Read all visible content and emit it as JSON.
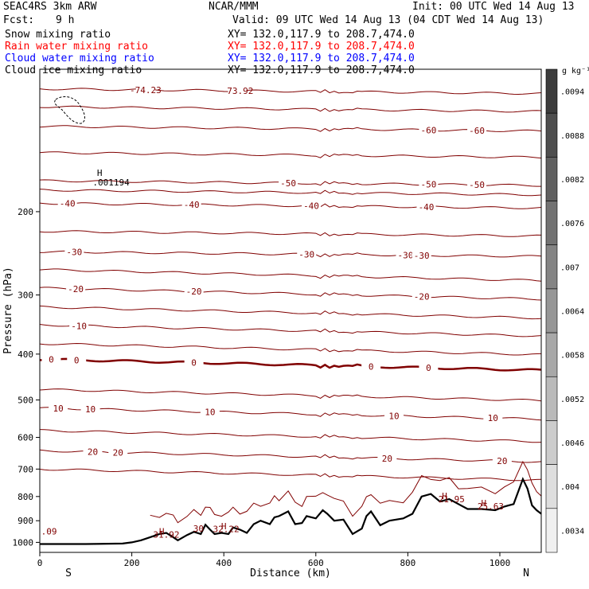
{
  "header": {
    "model": "SEAC4RS   3km ARW",
    "org": "NCAR/MMM",
    "init": "Init: 00 UTC Wed 14 Aug 13",
    "fcst_label": "Fcst:",
    "fcst_value": "9 h",
    "valid": "Valid: 09 UTC Wed 14 Aug 13 (04 CDT Wed 14 Aug 13)"
  },
  "fields": [
    {
      "name": "Snow mixing ratio",
      "xy": "XY= 132.0,117.9 to 208.7,474.0",
      "color": "#000000"
    },
    {
      "name": "Rain water mixing ratio",
      "xy": "XY= 132.0,117.9 to 208.7,474.0",
      "color": "#ff0000"
    },
    {
      "name": "Cloud water mixing ratio",
      "xy": "XY= 132.0,117.9 to 208.7,474.0",
      "color": "#0000ff"
    },
    {
      "name": "Cloud ice mixing ratio",
      "xy": "XY= 132.0,117.9 to 208.7,474.0",
      "color": "#000000"
    }
  ],
  "colorbar": {
    "unit": "g kg⁻¹",
    "labels": [
      ".0094",
      ".0088",
      ".0082",
      ".0076",
      ".007",
      ".0064",
      ".0058",
      ".0052",
      ".0046",
      ".004",
      ".0034"
    ]
  },
  "chart_data": {
    "type": "cross-section",
    "xlabel": "Distance (km)",
    "ylabel": "Pressure (hPa)",
    "x_ticks": [
      0,
      200,
      400,
      600,
      800,
      1000
    ],
    "y_ticks": [
      200,
      300,
      400,
      500,
      600,
      700,
      800,
      900,
      1000
    ],
    "xlim": [
      0,
      1090
    ],
    "ylim": [
      1050,
      100
    ],
    "y_scale": "log",
    "end_labels": {
      "left": "S",
      "right": "N"
    },
    "isotherm_color": "#800000",
    "isotherms_C": [
      {
        "value": -70,
        "p": 110,
        "labels": [
          {
            "text": "-74.23",
            "x": 230
          },
          {
            "text": "-73.92",
            "x": 430
          }
        ]
      },
      {
        "value": -65,
        "p": 120,
        "labels": []
      },
      {
        "value": -60,
        "p": 132,
        "labels": [
          {
            "text": "-60",
            "x": 845
          },
          {
            "text": "-60",
            "x": 950
          }
        ]
      },
      {
        "value": -55,
        "p": 150,
        "labels": []
      },
      {
        "value": -50,
        "p": 172,
        "labels": [
          {
            "text": "-50",
            "x": 540
          },
          {
            "text": "-50",
            "x": 845
          },
          {
            "text": "-50",
            "x": 950
          }
        ]
      },
      {
        "value": -45,
        "p": 180,
        "labels": []
      },
      {
        "value": -40,
        "p": 192,
        "labels": [
          {
            "text": "-40",
            "x": 60
          },
          {
            "text": "-40",
            "x": 330
          },
          {
            "text": "-40",
            "x": 590
          },
          {
            "text": "-40",
            "x": 840
          }
        ]
      },
      {
        "value": -35,
        "p": 220,
        "labels": []
      },
      {
        "value": -30,
        "p": 243,
        "labels": [
          {
            "text": "-30",
            "x": 75
          },
          {
            "text": "-30",
            "x": 580
          },
          {
            "text": "-30",
            "x": 795
          },
          {
            "text": "-30",
            "x": 830
          }
        ]
      },
      {
        "value": -25,
        "p": 265,
        "labels": []
      },
      {
        "value": -20,
        "p": 290,
        "labels": [
          {
            "text": "-20",
            "x": 78
          },
          {
            "text": "-20",
            "x": 335
          },
          {
            "text": "-20",
            "x": 830
          }
        ]
      },
      {
        "value": -15,
        "p": 318,
        "labels": []
      },
      {
        "value": -10,
        "p": 347,
        "labels": [
          {
            "text": "-10",
            "x": 85
          }
        ]
      },
      {
        "value": -5,
        "p": 380,
        "labels": []
      },
      {
        "value": 0,
        "p": 410,
        "bold": true,
        "labels": [
          {
            "text": "0",
            "x": 25
          },
          {
            "text": "0",
            "x": 80
          },
          {
            "text": "0",
            "x": 335
          },
          {
            "text": "0",
            "x": 720
          },
          {
            "text": "0",
            "x": 845
          }
        ]
      },
      {
        "value": 5,
        "p": 475,
        "labels": []
      },
      {
        "value": 10,
        "p": 520,
        "labels": [
          {
            "text": "10",
            "x": 40
          },
          {
            "text": "10",
            "x": 110
          },
          {
            "text": "10",
            "x": 370
          },
          {
            "text": "10",
            "x": 770
          },
          {
            "text": "10",
            "x": 985
          }
        ]
      },
      {
        "value": 15,
        "p": 580,
        "labels": []
      },
      {
        "value": 20,
        "p": 640,
        "labels": [
          {
            "text": "20",
            "x": 115
          },
          {
            "text": "20",
            "x": 170
          },
          {
            "text": "20",
            "x": 755
          },
          {
            "text": "20",
            "x": 1005
          }
        ]
      },
      {
        "value": 25,
        "p": 700,
        "labels": []
      }
    ],
    "terrain_profile": {
      "x": [
        0,
        100,
        180,
        200,
        220,
        240,
        260,
        275,
        290,
        300,
        320,
        335,
        350,
        360,
        370,
        380,
        395,
        410,
        420,
        435,
        450,
        465,
        480,
        500,
        510,
        520,
        540,
        555,
        570,
        580,
        600,
        615,
        625,
        640,
        660,
        680,
        700,
        710,
        720,
        740,
        760,
        790,
        810,
        830,
        850,
        870,
        890,
        910,
        930,
        960,
        990,
        1010,
        1030,
        1050,
        1060,
        1070,
        1080,
        1090
      ],
      "p": [
        1008,
        1008,
        1006,
        1000,
        990,
        975,
        960,
        955,
        975,
        990,
        965,
        950,
        960,
        918,
        940,
        960,
        955,
        960,
        930,
        940,
        955,
        915,
        900,
        915,
        885,
        880,
        860,
        915,
        910,
        880,
        890,
        855,
        870,
        900,
        895,
        960,
        935,
        880,
        860,
        920,
        900,
        890,
        870,
        800,
        790,
        820,
        810,
        830,
        850,
        850,
        855,
        840,
        830,
        735,
        770,
        835,
        855,
        870
      ]
    },
    "annotations": [
      {
        "text": "H",
        "x": 130,
        "p": 168
      },
      {
        "text": ".001194",
        "x": 155,
        "p": 176
      },
      {
        "text": "H",
        "x": 265,
        "p": 962
      },
      {
        "text": "31.92",
        "x": 275,
        "p": 978
      },
      {
        "text": "30",
        "x": 345,
        "p": 950
      },
      {
        "text": "H",
        "x": 400,
        "p": 938
      },
      {
        "text": "32.22",
        "x": 405,
        "p": 952
      },
      {
        "text": ".09",
        "x": 20,
        "p": 962
      },
      {
        "text": "H",
        "x": 880,
        "p": 810
      },
      {
        "text": "21.95",
        "x": 895,
        "p": 822
      },
      {
        "text": "H",
        "x": 965,
        "p": 838
      },
      {
        "text": "25.63",
        "x": 980,
        "p": 852
      }
    ]
  }
}
